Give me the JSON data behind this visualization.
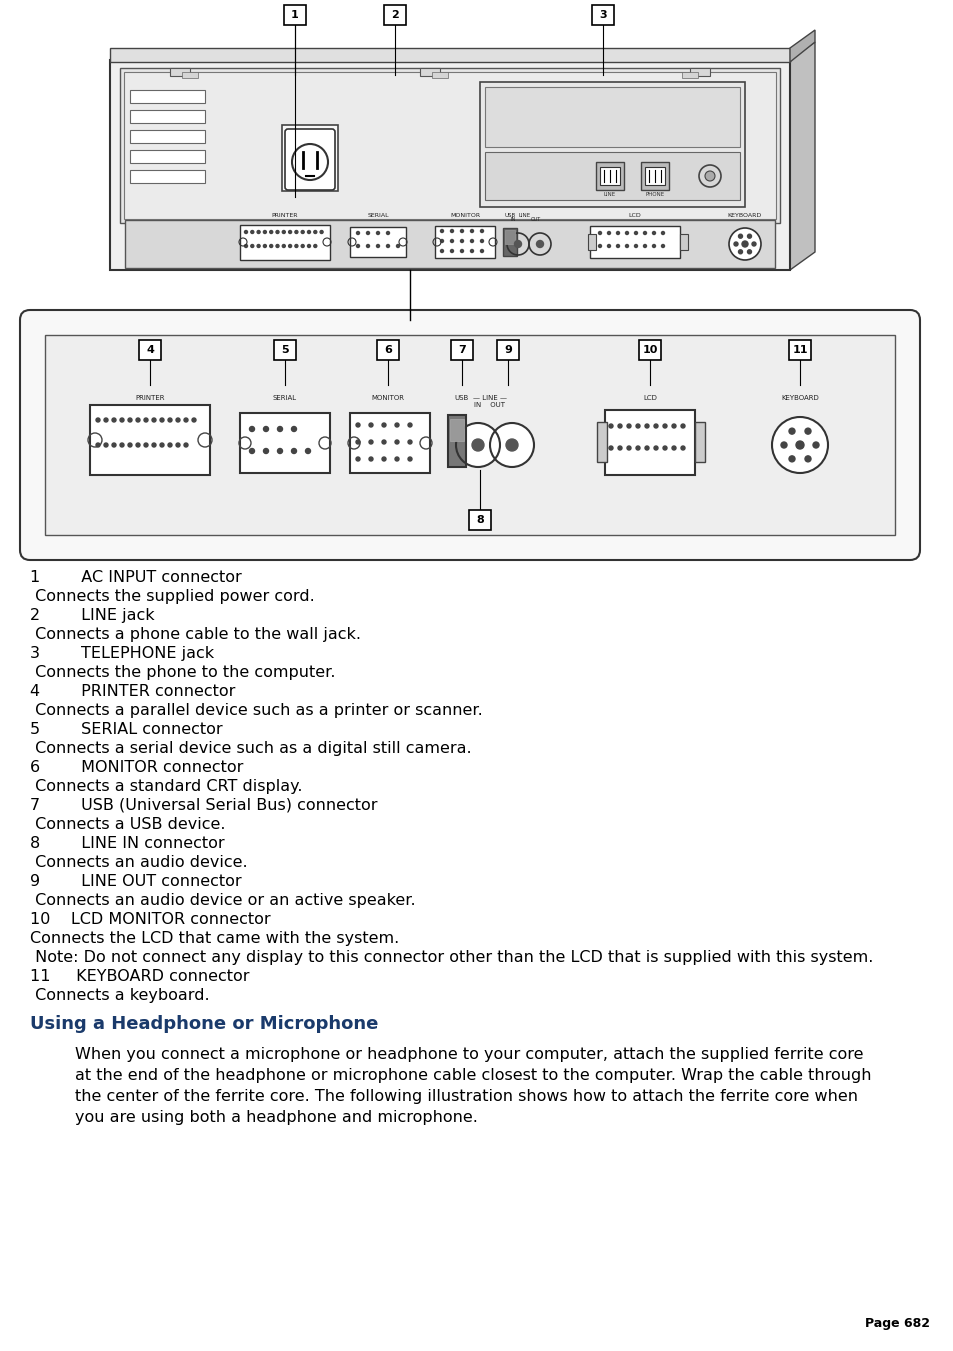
{
  "background_color": "#ffffff",
  "page_number": "Page 682",
  "heading": "Using a Headphone or Microphone",
  "heading_color": "#1a3a6b",
  "body_lines": [
    "1        AC INPUT connector",
    " Connects the supplied power cord.",
    "2        LINE jack",
    " Connects a phone cable to the wall jack.",
    "3        TELEPHONE jack",
    " Connects the phone to the computer.",
    "4        PRINTER connector",
    " Connects a parallel device such as a printer or scanner.",
    "5        SERIAL connector",
    " Connects a serial device such as a digital still camera.",
    "6        MONITOR connector",
    " Connects a standard CRT display.",
    "7        USB (Universal Serial Bus) connector",
    " Connects a USB device.",
    "8        LINE IN connector",
    " Connects an audio device.",
    "9        LINE OUT connector",
    " Connects an audio device or an active speaker.",
    "10    LCD MONITOR connector",
    "Connects the LCD that came with the system.",
    " Note: Do not connect any display to this connector other than the LCD that is supplied with this system.",
    "11     KEYBOARD connector",
    " Connects a keyboard."
  ],
  "paragraph_text": "When you connect a microphone or headphone to your computer, attach the supplied ferrite core\nat the end of the headphone or microphone cable closest to the computer. Wrap the cable through\nthe center of the ferrite core. The following illustration shows how to attach the ferrite core when\nyou are using both a headphone and microphone."
}
